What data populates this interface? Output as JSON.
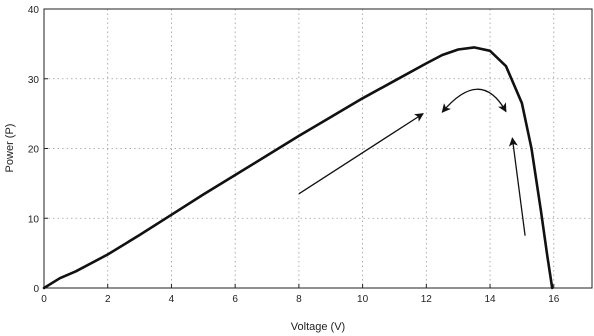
{
  "chart_data": {
    "type": "line",
    "title": "",
    "xlabel": "Voltage (V)",
    "ylabel": "Power (P)",
    "xlim": [
      0,
      17.2
    ],
    "ylim": [
      0,
      40
    ],
    "xticks": [
      0,
      2,
      4,
      6,
      8,
      10,
      12,
      14,
      16
    ],
    "yticks": [
      0,
      10,
      20,
      30,
      40
    ],
    "grid": true,
    "legend": "none",
    "series": [
      {
        "color": "#111111",
        "x": [
          0,
          0.5,
          1,
          2,
          3,
          4,
          5,
          6,
          7,
          8,
          9,
          10,
          11,
          12,
          12.5,
          13,
          13.5,
          14,
          14.5,
          15,
          15.3,
          15.6,
          15.8,
          15.95
        ],
        "y": [
          0,
          1.4,
          2.4,
          4.8,
          7.6,
          10.5,
          13.4,
          16.2,
          19.0,
          21.8,
          24.5,
          27.2,
          29.7,
          32.2,
          33.4,
          34.2,
          34.5,
          34.0,
          31.8,
          26.5,
          20.0,
          11.0,
          4.5,
          0
        ]
      }
    ],
    "annotations": [
      {
        "type": "arrow",
        "from": [
          8.0,
          13.5
        ],
        "to": [
          11.9,
          25.0
        ]
      },
      {
        "type": "arrow",
        "from": [
          15.1,
          7.5
        ],
        "to": [
          14.7,
          21.5
        ]
      },
      {
        "type": "curved-double-arrow",
        "from": [
          12.5,
          25.2
        ],
        "to": [
          14.5,
          25.3
        ],
        "peak": [
          13.6,
          28.5
        ]
      }
    ]
  }
}
